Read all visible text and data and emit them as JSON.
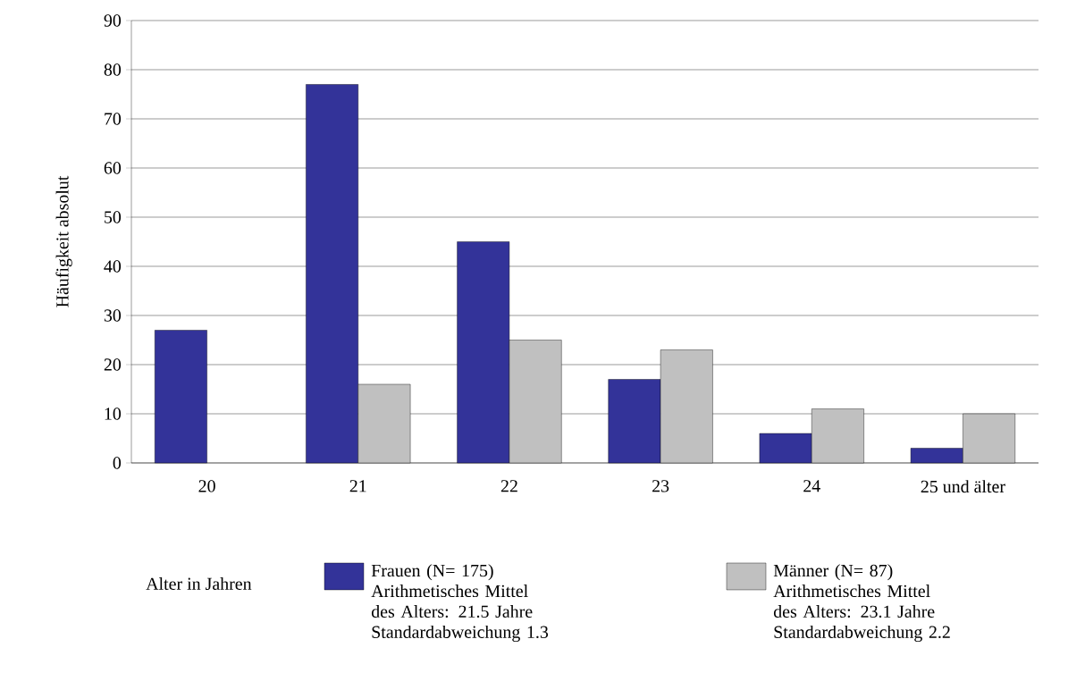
{
  "chart_data": {
    "type": "bar",
    "ylabel": "Häufigkeit absolut",
    "annotations": [
      "Alter in Jahren"
    ],
    "categories": [
      "20",
      "21",
      "22",
      "23",
      "24",
      "25 und älter"
    ],
    "series": [
      {
        "name": "Frauen (N= 175) Arithmetisches Mittel des Alters: 21.5 Jahre Standardabweichung 1.3",
        "color": "#333399",
        "values": [
          27,
          77,
          45,
          17,
          6,
          3
        ]
      },
      {
        "name": "Männer (N= 87) Arithmetisches Mittel des Alters: 23.1 Jahre Standardabweichung 2.2",
        "color": "#c0c0c0",
        "values": [
          null,
          16,
          25,
          23,
          11,
          10
        ]
      }
    ],
    "ylim": [
      0,
      90
    ],
    "yticks": [
      0,
      10,
      20,
      30,
      40,
      50,
      60,
      70,
      80,
      90
    ],
    "grid": "y",
    "legend": "bottom"
  }
}
